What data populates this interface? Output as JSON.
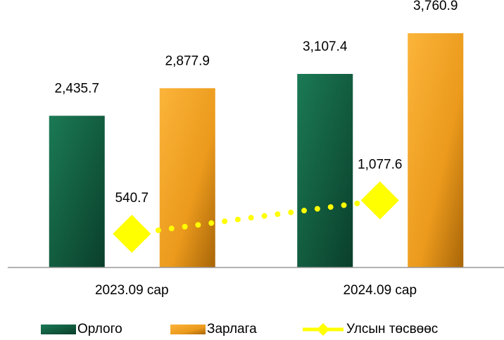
{
  "chart_data": {
    "type": "bar",
    "categories": [
      "2023.09 сар",
      "2024.09 сар"
    ],
    "series": [
      {
        "name": "Орлого",
        "color": "#0f5c3f",
        "values": [
          2435.7,
          3107.4
        ],
        "value_labels": [
          "2,435.7",
          "3,107.4"
        ]
      },
      {
        "name": "Зарлага",
        "color": "#f0a024",
        "values": [
          2877.9,
          3760.9
        ],
        "value_labels": [
          "2,877.9",
          "3,760.9"
        ]
      },
      {
        "name": "Улсын төсвөөс",
        "color": "#ffff00",
        "type": "line",
        "values": [
          540.7,
          1077.6
        ],
        "value_labels": [
          "540.7",
          "1,077.6"
        ]
      }
    ],
    "ylim": [
      0,
      4000
    ],
    "legend": "bottom"
  }
}
